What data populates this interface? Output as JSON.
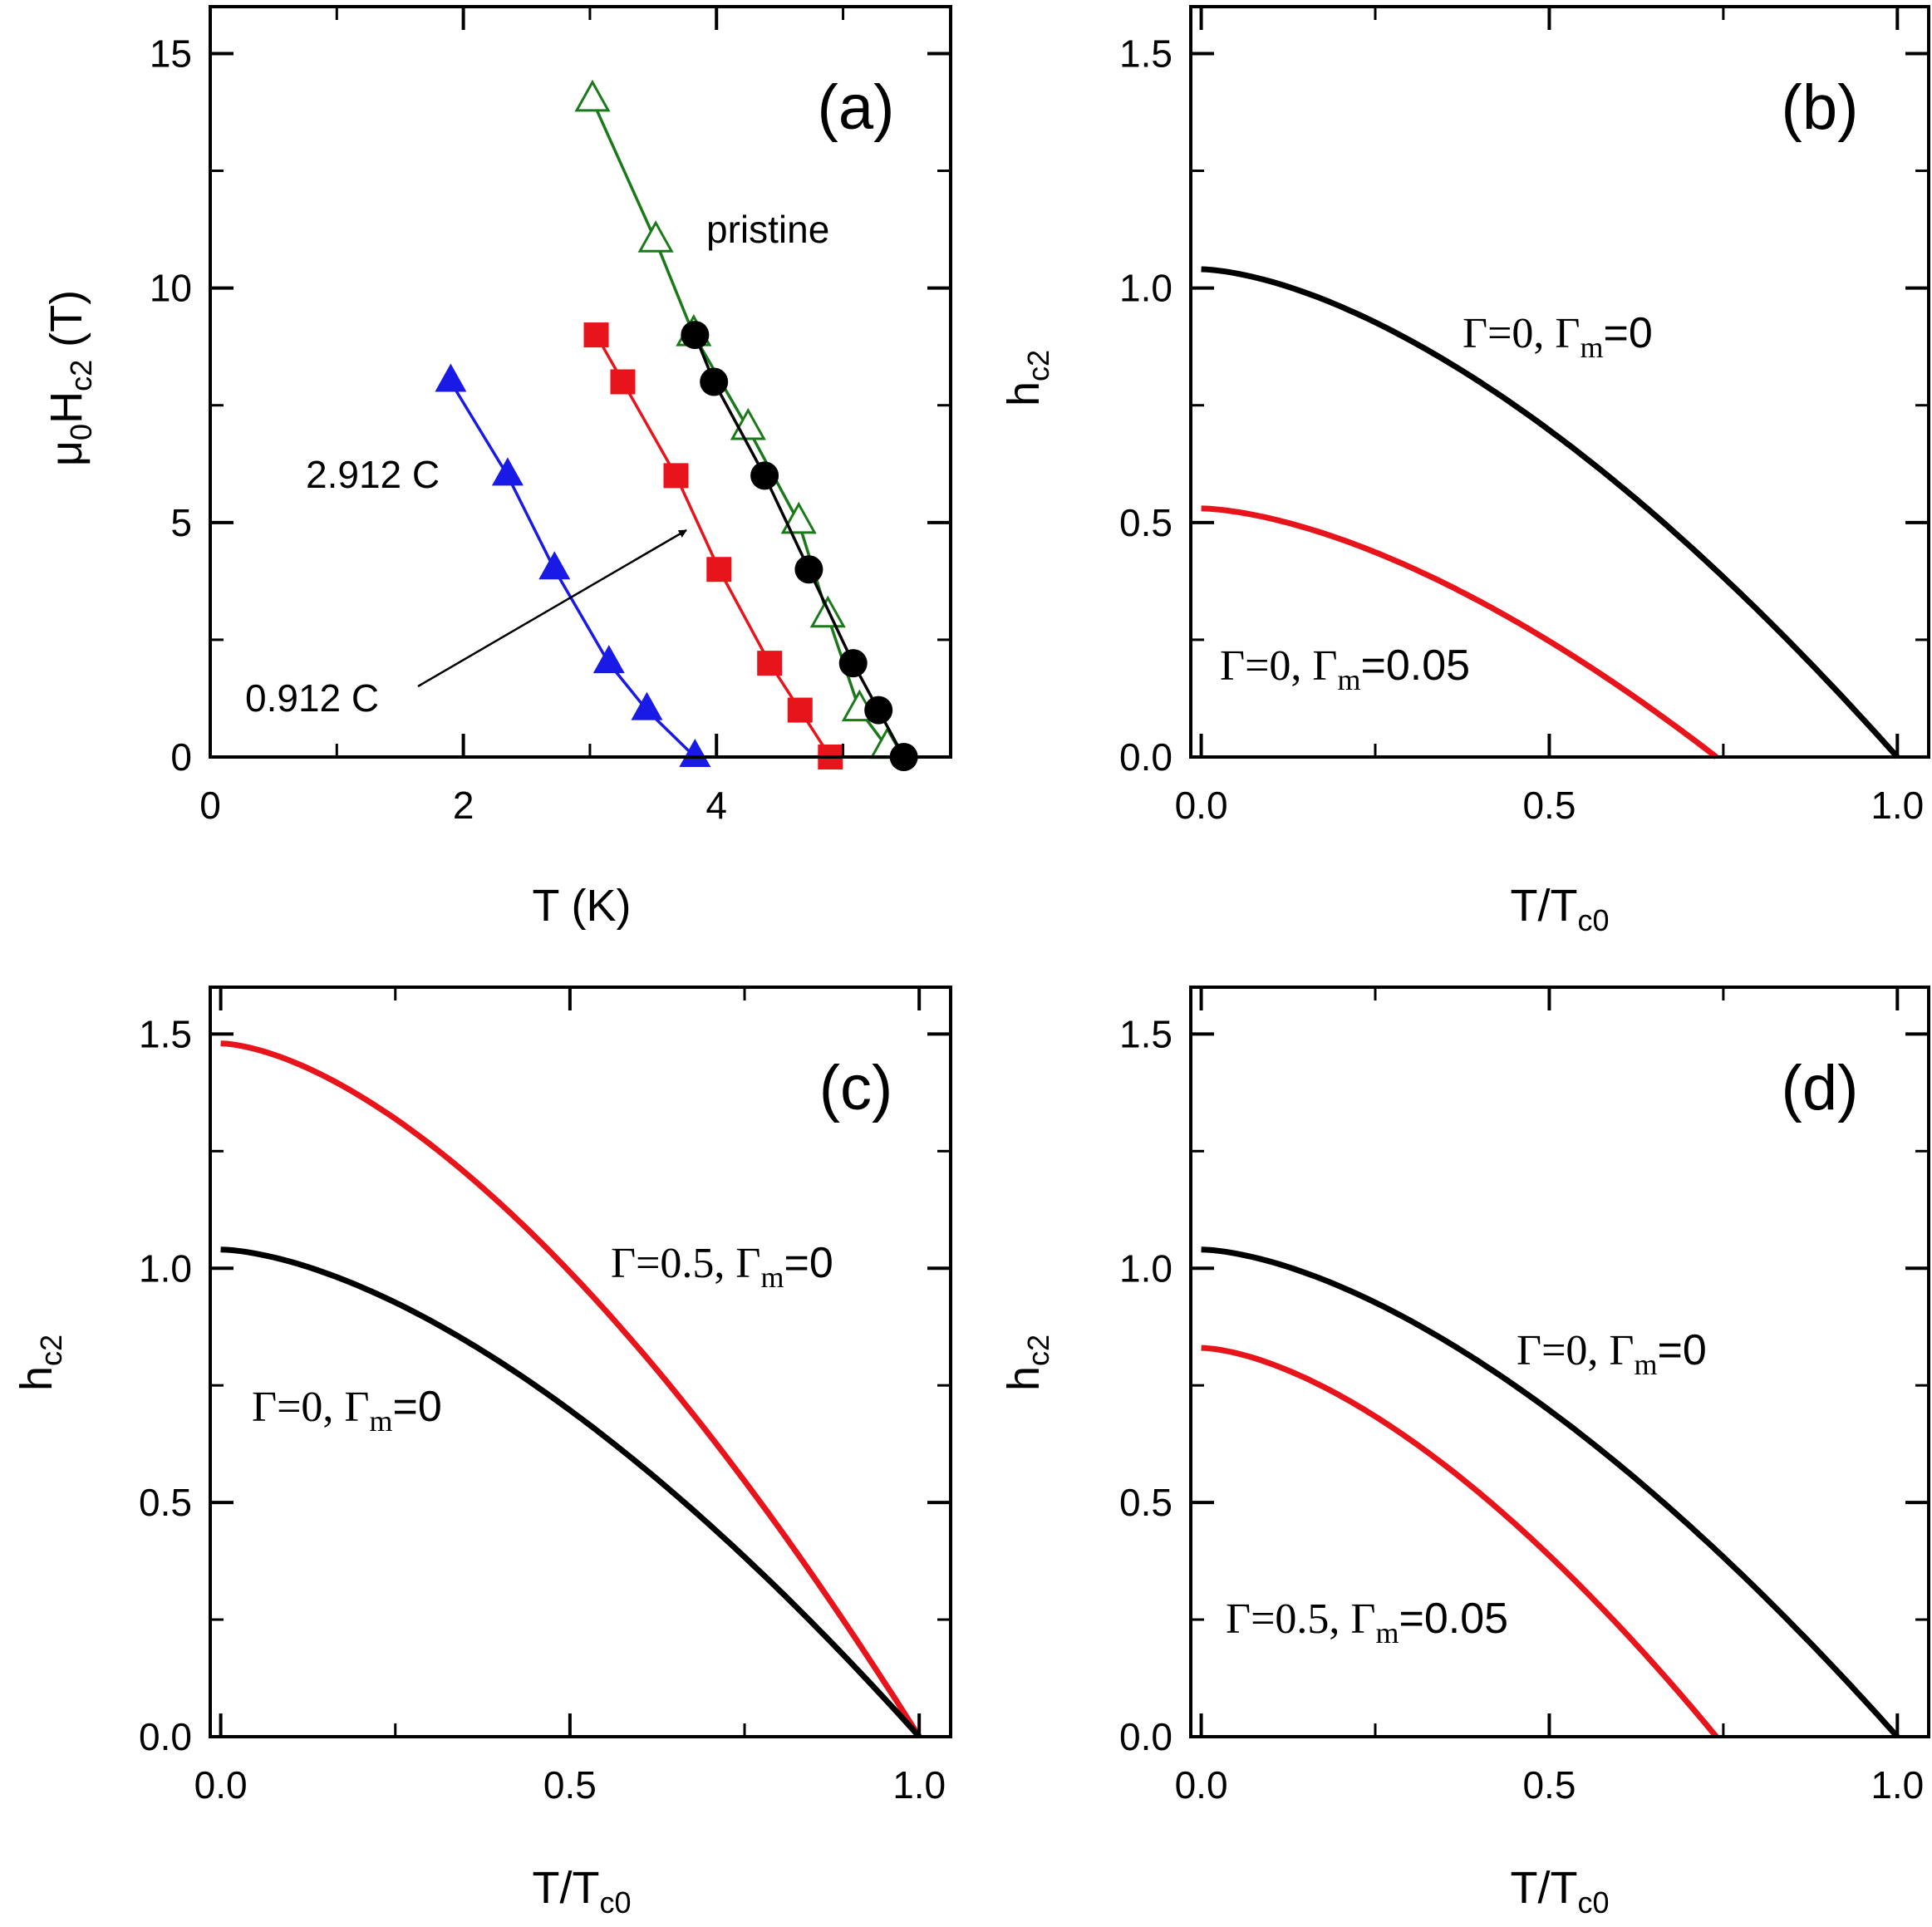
{
  "chart_data": [
    {
      "id": "a",
      "type": "line",
      "panel_label": "(a)",
      "xlabel": "T (K)",
      "ylabel": "μ0Hc2 (T)",
      "ylabel_parts": {
        "mu": "μ",
        "sub0": "0",
        "H": "H",
        "subc2": "c2",
        "unit": " (T)"
      },
      "xlim": [
        0,
        5.85
      ],
      "ylim": [
        0,
        16
      ],
      "xticks": [
        0,
        2,
        4
      ],
      "xtick_labels": [
        "0",
        "2",
        "4"
      ],
      "yticks": [
        0,
        5,
        10,
        15
      ],
      "ytick_labels": [
        "0",
        "5",
        "10",
        "15"
      ],
      "series": [
        {
          "name": "pristine (open triangles)",
          "color": "#1a7a1a",
          "marker": "open-triangle",
          "x": [
            3.02,
            3.52,
            3.82,
            4.25,
            4.65,
            4.88,
            5.13,
            5.35
          ],
          "y": [
            14,
            11,
            9,
            7,
            5,
            3,
            1,
            0.2
          ]
        },
        {
          "name": "pristine (filled circles)",
          "color": "#000000",
          "marker": "circle",
          "x": [
            3.83,
            3.98,
            4.38,
            4.73,
            5.08,
            5.28,
            5.48
          ],
          "y": [
            9,
            8,
            6,
            4,
            2,
            1,
            0
          ]
        },
        {
          "name": "0.912 C",
          "color": "#e8141b",
          "marker": "square",
          "x": [
            3.05,
            3.26,
            3.68,
            4.02,
            4.42,
            4.66,
            4.9
          ],
          "y": [
            9,
            8,
            6,
            4,
            2,
            1,
            0
          ]
        },
        {
          "name": "2.912 C",
          "color": "#1a1ae6",
          "marker": "triangle",
          "x": [
            1.9,
            2.35,
            2.72,
            3.15,
            3.45,
            3.83
          ],
          "y": [
            8,
            6,
            4,
            2,
            1,
            0
          ]
        }
      ],
      "annotations": {
        "pristine": "pristine",
        "c2912": "2.912 C",
        "c0912": "0.912 C"
      }
    },
    {
      "id": "b",
      "type": "line",
      "panel_label": "(b)",
      "xlabel": "T/Tc0",
      "xlabel_parts": {
        "main": "T/T",
        "sub": "c0"
      },
      "ylabel": "hc2",
      "ylabel_parts": {
        "main": "h",
        "sub": "c2"
      },
      "xlim": [
        -0.015,
        1.045
      ],
      "ylim": [
        0,
        1.6
      ],
      "xticks": [
        0,
        0.5,
        1.0
      ],
      "xtick_labels": [
        "0.0",
        "0.5",
        "1.0"
      ],
      "yticks": [
        0,
        0.5,
        1.0,
        1.5
      ],
      "ytick_labels": [
        "0.0",
        "0.5",
        "1.0",
        "1.5"
      ],
      "series": [
        {
          "name": "Γ=0, Γm=0",
          "color": "#000000",
          "h0": 1.04,
          "tc": 1.0
        },
        {
          "name": "Γ=0, Γm=0.05",
          "color": "#e8141b",
          "h0": 0.53,
          "tc": 0.74
        }
      ],
      "labels": [
        {
          "gamma": "Γ=0, Γ",
          "sub": "m",
          "tail": "=0"
        },
        {
          "gamma": "Γ=0, Γ",
          "sub": "m",
          "tail": "=0.05"
        }
      ]
    },
    {
      "id": "c",
      "type": "line",
      "panel_label": "(c)",
      "xlabel": "T/Tc0",
      "xlabel_parts": {
        "main": "T/T",
        "sub": "c0"
      },
      "ylabel": "hc2",
      "ylabel_parts": {
        "main": "h",
        "sub": "c2"
      },
      "xlim": [
        -0.015,
        1.045
      ],
      "ylim": [
        0,
        1.6
      ],
      "xticks": [
        0,
        0.5,
        1.0
      ],
      "xtick_labels": [
        "0.0",
        "0.5",
        "1.0"
      ],
      "yticks": [
        0,
        0.5,
        1.0,
        1.5
      ],
      "ytick_labels": [
        "0.0",
        "0.5",
        "1.0",
        "1.5"
      ],
      "series": [
        {
          "name": "Γ=0.5, Γm=0",
          "color": "#e8141b",
          "h0": 1.48,
          "tc": 1.0
        },
        {
          "name": "Γ=0, Γm=0",
          "color": "#000000",
          "h0": 1.04,
          "tc": 1.0
        }
      ],
      "labels": [
        {
          "gamma": "Γ=0.5, Γ",
          "sub": "m",
          "tail": "=0"
        },
        {
          "gamma": "Γ=0, Γ",
          "sub": "m",
          "tail": "=0"
        }
      ]
    },
    {
      "id": "d",
      "type": "line",
      "panel_label": "(d)",
      "xlabel": "T/Tc0",
      "xlabel_parts": {
        "main": "T/T",
        "sub": "c0"
      },
      "ylabel": "hc2",
      "ylabel_parts": {
        "main": "h",
        "sub": "c2"
      },
      "xlim": [
        -0.015,
        1.045
      ],
      "ylim": [
        0,
        1.6
      ],
      "xticks": [
        0,
        0.5,
        1.0
      ],
      "xtick_labels": [
        "0.0",
        "0.5",
        "1.0"
      ],
      "yticks": [
        0,
        0.5,
        1.0,
        1.5
      ],
      "ytick_labels": [
        "0.0",
        "0.5",
        "1.0",
        "1.5"
      ],
      "series": [
        {
          "name": "Γ=0, Γm=0",
          "color": "#000000",
          "h0": 1.04,
          "tc": 1.0
        },
        {
          "name": "Γ=0.5, Γm=0.05",
          "color": "#e8141b",
          "h0": 0.83,
          "tc": 0.74
        }
      ],
      "labels": [
        {
          "gamma": "Γ=0, Γ",
          "sub": "m",
          "tail": "=0"
        },
        {
          "gamma": "Γ=0.5, Γ",
          "sub": "m",
          "tail": "=0.05"
        }
      ]
    }
  ]
}
